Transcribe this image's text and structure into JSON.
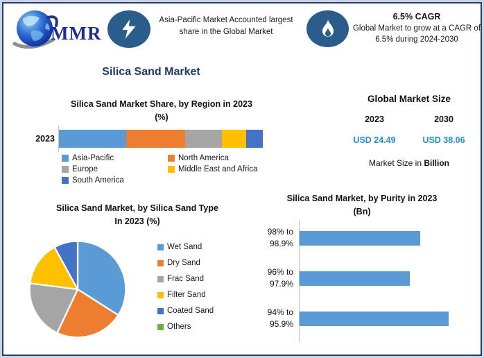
{
  "title": "Silica Sand Market",
  "colors": {
    "series_blue": "#5B9BD5",
    "series_orange": "#ED7D31",
    "series_gray": "#A5A5A5",
    "series_yellow": "#FFC000",
    "series_dark_blue": "#4472C4",
    "series_green": "#70AD47",
    "icon_circle_blue": "#2A5D8C",
    "title_navy": "#1F3864",
    "usd_value_blue": "#2491CE",
    "frame_border_dark": "#23405E",
    "frame_border_light": "#C9D2E9"
  },
  "header": {
    "logo_text": "MMR",
    "highlight": "Asia-Pacific Market Accounted largest share in the Global Market",
    "cagr_title": "6.5% CAGR",
    "cagr_text": "Global Market to grow at a CAGR of 6.5% during 2024-2030"
  },
  "market_size": {
    "title": "Global Market Size",
    "years": [
      "2023",
      "2030"
    ],
    "values": [
      "USD 24.49",
      "USD 38.06"
    ],
    "note_prefix": "Market Size in ",
    "note_bold": "Billion"
  },
  "chart_data": [
    {
      "id": "region_share",
      "type": "bar",
      "subtype": "stacked-horizontal",
      "title": "Silica Sand Market Share, by Region in 2023 (%)",
      "title_lines": [
        "Silica Sand Market Share, by Region in 2023",
        "(%)"
      ],
      "categories": [
        "2023"
      ],
      "unit": "%",
      "legend_position": "bottom",
      "series": [
        {
          "name": "Asia-Pacific",
          "values": [
            33
          ],
          "color": "#5B9BD5"
        },
        {
          "name": "North America",
          "values": [
            29
          ],
          "color": "#ED7D31"
        },
        {
          "name": "Europe",
          "values": [
            18
          ],
          "color": "#A5A5A5"
        },
        {
          "name": "Middle East and Africa",
          "values": [
            12
          ],
          "color": "#FFC000"
        },
        {
          "name": "South America",
          "values": [
            8
          ],
          "color": "#4472C4"
        }
      ]
    },
    {
      "id": "type_share",
      "type": "pie",
      "title": "Silica Sand Market, by Silica Sand Type In 2023 (%)",
      "title_lines": [
        "Silica Sand Market, by Silica Sand Type",
        "In 2023 (%)"
      ],
      "unit": "%",
      "legend_position": "right",
      "labels": [
        "Wet Sand",
        "Dry Sand",
        "Frac Sand",
        "Filter Sand",
        "Coated Sand",
        "Others"
      ],
      "values": [
        34,
        23,
        20,
        15,
        8,
        0
      ],
      "colors": [
        "#5B9BD5",
        "#ED7D31",
        "#A5A5A5",
        "#FFC000",
        "#4472C4",
        "#70AD47"
      ]
    },
    {
      "id": "purity",
      "type": "bar",
      "subtype": "horizontal",
      "title": "Silica Sand Market, by Purity in 2023 (Bn)",
      "title_lines": [
        "Silica Sand Market, by Purity in 2023",
        "(Bn)"
      ],
      "categories": [
        [
          "98% to",
          "98.9%"
        ],
        [
          "96% to",
          "97.9%"
        ],
        [
          "94% to",
          "95.9%"
        ]
      ],
      "values_relative_to_max": [
        0.81,
        0.74,
        1.0
      ],
      "color": "#5B9BD5",
      "legend_position": "none"
    }
  ]
}
